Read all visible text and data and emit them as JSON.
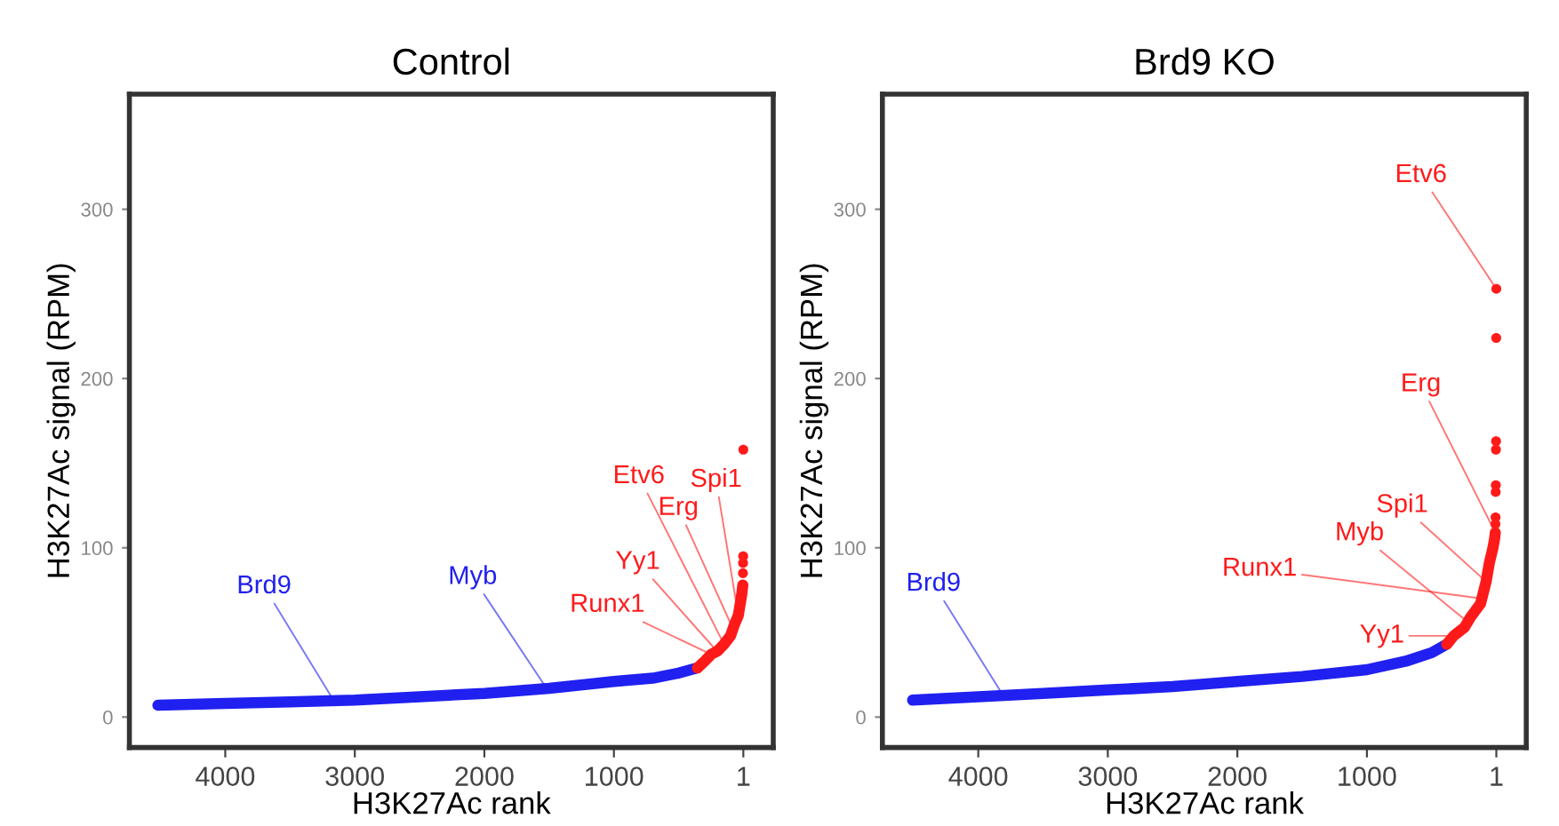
{
  "chart_data": [
    {
      "type": "line",
      "title": "Control",
      "xlabel": "H3K27Ac rank",
      "ylabel": "H3K27Ac signal (RPM)",
      "xlim": [
        4740,
        -230
      ],
      "ylim": [
        -18,
        368
      ],
      "xticks": [
        4000,
        3000,
        2000,
        1000,
        1
      ],
      "yticks": [
        0,
        100,
        200,
        300
      ],
      "line_style": "solid",
      "series": [
        {
          "color": "#2020f0",
          "x": [
            4520,
            4000,
            3500,
            3000,
            2500,
            2000,
            1500,
            1000,
            700,
            500,
            356
          ],
          "values": [
            7,
            8,
            9,
            10,
            12,
            14,
            17,
            21,
            23,
            26,
            29
          ]
        },
        {
          "color": "#ff1a1a",
          "x": [
            356,
            300,
            250,
            200,
            150,
            100,
            68,
            40,
            14,
            5
          ],
          "values": [
            29,
            33,
            37,
            39,
            43,
            48,
            55,
            60,
            72,
            78
          ]
        },
        {
          "type": "scatter",
          "marker": "circle",
          "color": "#ff1a1a",
          "x": [
            4,
            3,
            2,
            1
          ],
          "values": [
            85,
            91,
            95,
            158
          ]
        }
      ],
      "annotations": [
        {
          "text": "Brd9",
          "x": 3165,
          "y": 10
        },
        {
          "text": "Myb",
          "x": 1520,
          "y": 17
        },
        {
          "text": "Runx1",
          "x": 247,
          "y": 37
        },
        {
          "text": "Yy1",
          "x": 205,
          "y": 39
        },
        {
          "text": "Erg",
          "x": 80,
          "y": 52
        },
        {
          "text": "Etv6",
          "x": 150,
          "y": 43
        },
        {
          "text": "Spi1",
          "x": 40,
          "y": 60
        }
      ]
    },
    {
      "type": "line",
      "title": "Brd9 KO",
      "xlabel": "H3K27Ac rank",
      "ylabel": "H3K27Ac signal (RPM)",
      "xlim": [
        4740,
        -230
      ],
      "ylim": [
        -18,
        368
      ],
      "xticks": [
        4000,
        3000,
        2000,
        1000,
        1
      ],
      "yticks": [
        0,
        100,
        200,
        300
      ],
      "line_style": "solid",
      "series": [
        {
          "color": "#2020f0",
          "x": [
            4507,
            4000,
            3500,
            3000,
            2500,
            2000,
            1500,
            1000,
            700,
            500,
            384
          ],
          "values": [
            10,
            12,
            14,
            16,
            18,
            21,
            24,
            28,
            33,
            38,
            43
          ]
        },
        {
          "color": "#ff1a1a",
          "x": [
            384,
            330,
            247,
            200,
            123,
            80,
            55,
            27,
            15,
            9
          ],
          "values": [
            43,
            48,
            53,
            59,
            67,
            80,
            91,
            100,
            105,
            109
          ]
        },
        {
          "type": "scatter",
          "marker": "circle",
          "color": "#ff1a1a",
          "x": [
            8,
            7,
            6,
            5,
            4,
            3,
            2,
            1
          ],
          "values": [
            114,
            118,
            133,
            137,
            158,
            163,
            224,
            253
          ]
        }
      ],
      "annotations": [
        {
          "text": "Brd9",
          "x": 3810,
          "y": 13
        },
        {
          "text": "Etv6",
          "x": 1,
          "y": 253
        },
        {
          "text": "Erg",
          "x": 9,
          "y": 109
        },
        {
          "text": "Runx1",
          "x": 110,
          "y": 70
        },
        {
          "text": "Spi1",
          "x": 80,
          "y": 80
        },
        {
          "text": "Myb",
          "x": 220,
          "y": 56
        },
        {
          "text": "Yy1",
          "x": 330,
          "y": 48
        }
      ]
    }
  ]
}
